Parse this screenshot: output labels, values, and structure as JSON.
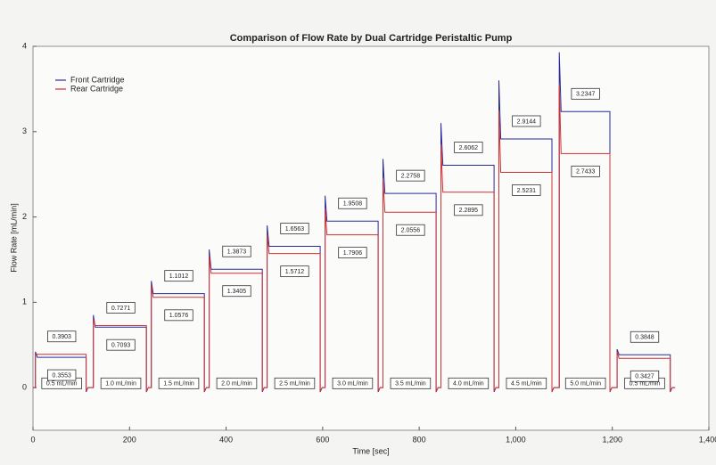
{
  "chart_data": {
    "type": "line",
    "title": "Comparison of Flow Rate by Dual Cartridge Peristaltic Pump",
    "x_label": "Time [sec]",
    "y_label": "Flow Rate [mL/min]",
    "xlim": [
      0,
      1400
    ],
    "xticks": [
      0,
      200,
      400,
      600,
      800,
      {
        "value": 1000,
        "label": "1,000"
      },
      {
        "value": 1200,
        "label": "1,200"
      },
      {
        "value": 1400,
        "label": "1,400"
      }
    ],
    "ylim": [
      -0.5,
      4
    ],
    "yticks": [
      0,
      1,
      2,
      3,
      4
    ],
    "grid": false,
    "legend": "upper left",
    "x": [
      0,
      5,
      5,
      9,
      110,
      110,
      114,
      125,
      125,
      129,
      235,
      235,
      239,
      245,
      245,
      249,
      355,
      355,
      359,
      365,
      365,
      369,
      475,
      475,
      479,
      485,
      485,
      489,
      595,
      595,
      599,
      605,
      605,
      609,
      715,
      715,
      719,
      725,
      725,
      729,
      835,
      835,
      839,
      845,
      845,
      849,
      955,
      955,
      959,
      965,
      965,
      969,
      1075,
      1075,
      1079,
      1090,
      1090,
      1094,
      1195,
      1195,
      1199,
      1210,
      1210,
      1214,
      1320,
      1320,
      1324,
      1330
    ],
    "series": [
      {
        "name": "Front Cartridge",
        "color": "#2a2a9a",
        "values": [
          0,
          0,
          0.42,
          0.3553,
          0.3553,
          -0.05,
          0,
          0,
          0.85,
          0.7093,
          0.7093,
          -0.05,
          0,
          0,
          1.25,
          1.1012,
          1.1012,
          -0.05,
          0,
          0,
          1.62,
          1.3873,
          1.3873,
          -0.05,
          0,
          0,
          1.9,
          1.6563,
          1.6563,
          -0.05,
          0,
          0,
          2.25,
          1.9508,
          1.9508,
          -0.05,
          0,
          0,
          2.68,
          2.2758,
          2.2758,
          -0.05,
          0,
          0,
          3.1,
          2.6062,
          2.6062,
          -0.05,
          0,
          0,
          3.6,
          2.9144,
          2.9144,
          -0.05,
          0,
          0,
          3.93,
          3.2347,
          3.2347,
          -0.05,
          0,
          0,
          0.45,
          0.3848,
          0.3848,
          -0.05,
          0,
          0
        ]
      },
      {
        "name": "Rear Cartridge",
        "color": "#d03030",
        "values": [
          0,
          0,
          0.4,
          0.3903,
          0.3903,
          -0.04,
          0,
          0,
          0.8,
          0.7271,
          0.7271,
          -0.04,
          0,
          0,
          1.2,
          1.0576,
          1.0576,
          -0.04,
          0,
          0,
          1.55,
          1.3405,
          1.3405,
          -0.04,
          0,
          0,
          1.8,
          1.5712,
          1.5712,
          -0.04,
          0,
          0,
          2.1,
          1.7906,
          1.7906,
          -0.04,
          0,
          0,
          2.45,
          2.0556,
          2.0556,
          -0.04,
          0,
          0,
          2.85,
          2.2895,
          2.2895,
          -0.04,
          0,
          0,
          3.25,
          2.5231,
          2.5231,
          -0.04,
          0,
          0,
          3.55,
          2.7433,
          2.7433,
          -0.04,
          0,
          0,
          0.42,
          0.3427,
          0.3427,
          -0.04,
          0,
          0
        ]
      }
    ],
    "segments": [
      {
        "setpoint": "0.5 mL/min",
        "front_mean": 0.3553,
        "rear_mean": 0.3903
      },
      {
        "setpoint": "1.0 mL/min",
        "front_mean": 0.7093,
        "rear_mean": 0.7271
      },
      {
        "setpoint": "1.5 mL/min",
        "front_mean": 1.1012,
        "rear_mean": 1.0576
      },
      {
        "setpoint": "2.0 mL/min",
        "front_mean": 1.3873,
        "rear_mean": 1.3405
      },
      {
        "setpoint": "2.5 mL/min",
        "front_mean": 1.6563,
        "rear_mean": 1.5712
      },
      {
        "setpoint": "3.0 mL/min",
        "front_mean": 1.9508,
        "rear_mean": 1.7906
      },
      {
        "setpoint": "3.5 mL/min",
        "front_mean": 2.2758,
        "rear_mean": 2.0556
      },
      {
        "setpoint": "4.0 mL/min",
        "front_mean": 2.6062,
        "rear_mean": 2.2895
      },
      {
        "setpoint": "4.5 mL/min",
        "front_mean": 2.9144,
        "rear_mean": 2.5231
      },
      {
        "setpoint": "5.0 mL/min",
        "front_mean": 3.2347,
        "rear_mean": 2.7433
      },
      {
        "setpoint": "0.5 mL/min",
        "front_mean": 0.3848,
        "rear_mean": 0.3427
      }
    ]
  }
}
